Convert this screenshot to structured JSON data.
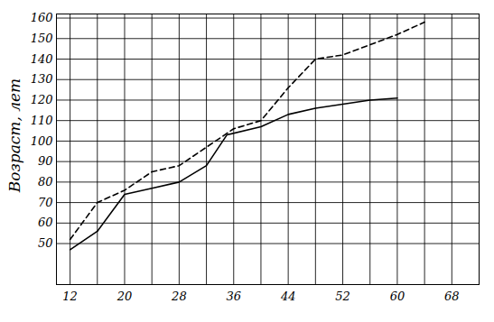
{
  "chart_data": {
    "type": "line",
    "y_label": "Возраст, лет",
    "xlim": [
      10,
      72
    ],
    "xticks": [
      12,
      20,
      28,
      36,
      44,
      52,
      60,
      68
    ],
    "ylim": [
      30,
      162
    ],
    "yticks": [
      50,
      60,
      70,
      80,
      90,
      100,
      110,
      120,
      130,
      140,
      150,
      160
    ],
    "grid": true,
    "series": [
      {
        "color": "#000000",
        "line_style": "solid",
        "x": [
          12,
          16,
          20,
          24,
          28,
          32,
          35,
          40,
          44,
          48,
          52,
          56,
          60
        ],
        "values": [
          47,
          56,
          74,
          77,
          80,
          88,
          103,
          107,
          113,
          116,
          118,
          120,
          121
        ]
      },
      {
        "color": "#000000",
        "line_style": "dashed",
        "x": [
          12,
          16,
          20,
          24,
          28,
          32,
          36,
          40,
          44,
          48,
          52,
          56,
          60,
          64
        ],
        "values": [
          52,
          70,
          76,
          85,
          88,
          97,
          106,
          110,
          126,
          140,
          142,
          147,
          152,
          158
        ]
      }
    ]
  }
}
